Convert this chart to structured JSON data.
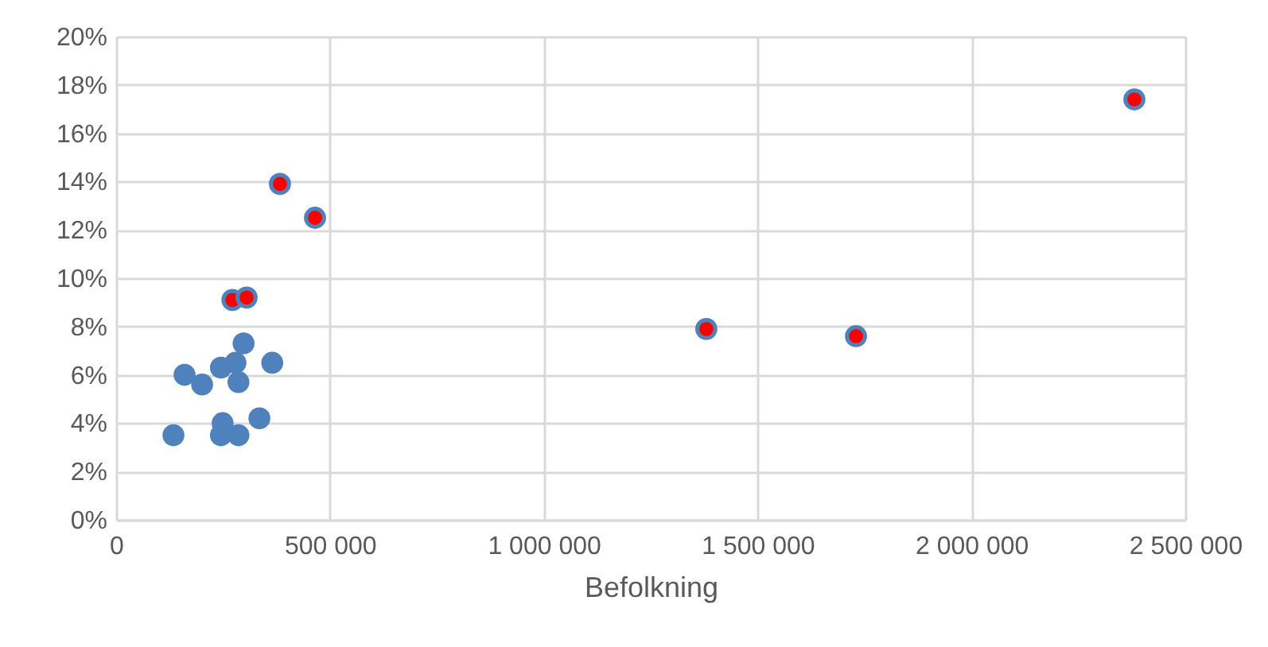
{
  "chart_data": {
    "type": "scatter",
    "xlabel": "Befolkning",
    "series": [
      {
        "color": "#4f81bd",
        "x": [
          134000,
          160000,
          201000,
          245000,
          249000,
          245000,
          286000,
          286000,
          298000,
          279000,
          335000,
          365000
        ],
        "values": [
          3.5,
          6.0,
          5.6,
          6.3,
          4.0,
          3.5,
          3.5,
          5.7,
          7.3,
          6.5,
          4.2,
          6.5
        ]
      },
      {
        "color": "#ff0000",
        "x": [
          383000,
          465000,
          272000,
          305000,
          1380000,
          1730000,
          2381000
        ],
        "values": [
          13.9,
          12.5,
          9.1,
          9.2,
          7.9,
          7.6,
          17.4
        ]
      }
    ],
    "xlim": [
      0,
      2500000
    ],
    "ylim": [
      0,
      20
    ],
    "xticks": [
      0,
      {
        "value": 500000,
        "label": "500 000"
      },
      {
        "value": 1000000,
        "label": "1 000 000"
      },
      {
        "value": 1500000,
        "label": "1 500 000"
      },
      {
        "value": 2000000,
        "label": "2 000 000"
      },
      {
        "value": 2500000,
        "label": "2 500 000"
      }
    ],
    "yticks": [
      {
        "value": 0,
        "label": "0%"
      },
      {
        "value": 2,
        "label": "2%"
      },
      {
        "value": 4,
        "label": "4%"
      },
      {
        "value": 6,
        "label": "6%"
      },
      {
        "value": 8,
        "label": "8%"
      },
      {
        "value": 10,
        "label": "10%"
      },
      {
        "value": 12,
        "label": "12%"
      },
      {
        "value": 14,
        "label": "14%"
      },
      {
        "value": 16,
        "label": "16%"
      },
      {
        "value": 18,
        "label": "18%"
      },
      {
        "value": 20,
        "label": "20%"
      }
    ],
    "grid": true
  }
}
